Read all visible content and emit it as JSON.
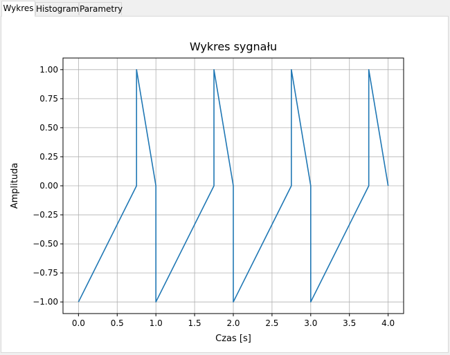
{
  "tabs": [
    {
      "label": "Wykres",
      "active": true
    },
    {
      "label": "Histogram",
      "active": false
    },
    {
      "label": "Parametry",
      "active": false
    }
  ],
  "colors": {
    "series": "#1f77b4",
    "grid": "#b0b0b0",
    "panel_bg": "#ffffff",
    "window_bg": "#f0f0f0"
  },
  "chart_data": {
    "type": "line",
    "title": "Wykres sygnału",
    "xlabel": "Czas [s]",
    "ylabel": "Amplituda",
    "xlim": [
      -0.2,
      4.2
    ],
    "ylim": [
      -1.1,
      1.1
    ],
    "grid": true,
    "xticks": [
      0.0,
      0.5,
      1.0,
      1.5,
      2.0,
      2.5,
      3.0,
      3.5,
      4.0
    ],
    "xtick_labels": [
      "0.0",
      "0.5",
      "1.0",
      "1.5",
      "2.0",
      "2.5",
      "3.0",
      "3.5",
      "4.0"
    ],
    "yticks": [
      -1.0,
      -0.75,
      -0.5,
      -0.25,
      0.0,
      0.25,
      0.5,
      0.75,
      1.0
    ],
    "ytick_labels": [
      "−1.00",
      "−0.75",
      "−0.50",
      "−0.25",
      "0.00",
      "0.25",
      "0.50",
      "0.75",
      "1.00"
    ],
    "series": [
      {
        "x": [
          0.0,
          0.75,
          0.75,
          1.0,
          1.0,
          1.0,
          1.75,
          1.75,
          2.0,
          2.0,
          2.0,
          2.75,
          2.75,
          3.0,
          3.0,
          3.0,
          3.75,
          3.75,
          4.0
        ],
        "y": [
          -1.0,
          0.0,
          1.0,
          0.0,
          0.0,
          -1.0,
          0.0,
          1.0,
          0.0,
          0.0,
          -1.0,
          0.0,
          1.0,
          0.0,
          0.0,
          -1.0,
          0.0,
          1.0,
          0.0
        ]
      }
    ]
  }
}
